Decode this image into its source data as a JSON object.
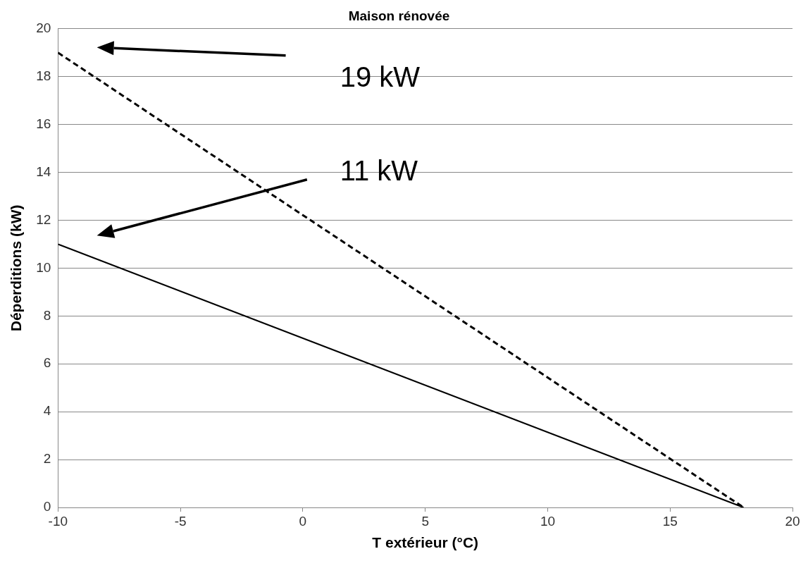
{
  "chart_data": {
    "type": "line",
    "title": "Maison rénovée",
    "xlabel": "T extérieur (°C)",
    "ylabel": "Déperditions (kW)",
    "x": [
      -10,
      18
    ],
    "series": [
      {
        "color": "#000000",
        "values": [
          19,
          0
        ],
        "line_style": "dashed"
      },
      {
        "color": "#000000",
        "values": [
          11,
          0
        ],
        "line_style": "solid"
      }
    ],
    "xlim": [
      -10,
      20
    ],
    "xticks": [
      -10,
      -5,
      0,
      5,
      10,
      15,
      20
    ],
    "ylim": [
      0,
      20
    ],
    "yticks": [
      0,
      2,
      4,
      6,
      8,
      10,
      12,
      14,
      16,
      18,
      20
    ],
    "grid": "y",
    "legend": false,
    "marker": "none",
    "annotations": [
      "19 kW",
      "11 kW"
    ]
  }
}
